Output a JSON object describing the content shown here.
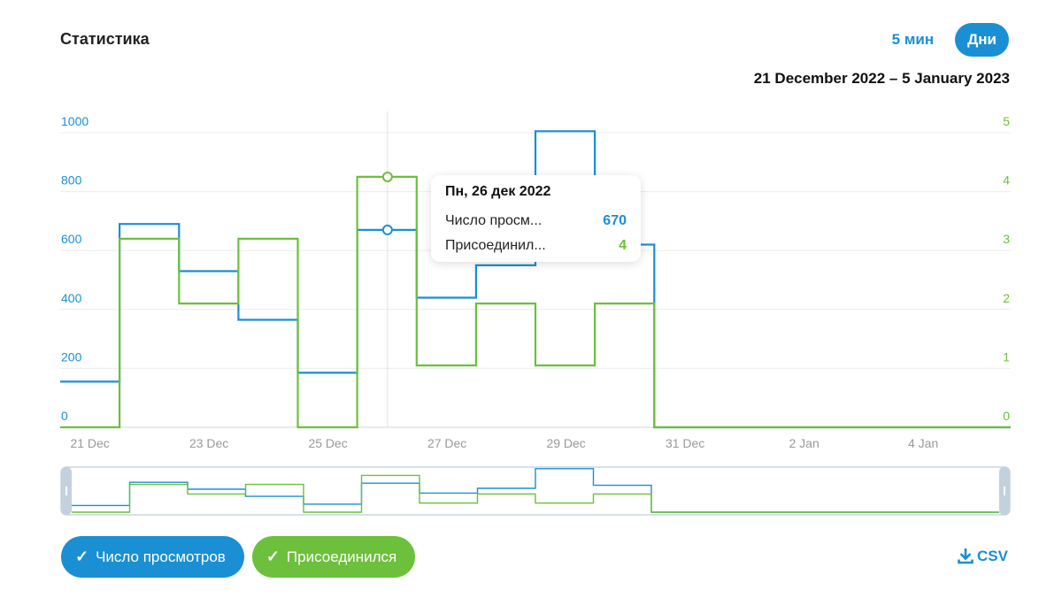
{
  "header": {
    "title": "Статистика",
    "period_5min": "5 мин",
    "period_days": "Дни",
    "date_range": "21 December 2022 – 5 January 2023"
  },
  "colors": {
    "views": "#1b8fd3",
    "joined": "#6cc03b"
  },
  "chart_data": {
    "type": "line",
    "step": true,
    "x_dates": [
      "21 Dec",
      "22 Dec",
      "23 Dec",
      "24 Dec",
      "25 Dec",
      "26 Dec",
      "27 Dec",
      "28 Dec",
      "29 Dec",
      "30 Dec",
      "31 Dec",
      "1 Jan",
      "2 Jan",
      "3 Jan",
      "4 Jan",
      "5 Jan"
    ],
    "x_tick_labels": [
      "21 Dec",
      "23 Dec",
      "25 Dec",
      "27 Dec",
      "29 Dec",
      "31 Dec",
      "2 Jan",
      "4 Jan"
    ],
    "y_left_ticks": [
      "0",
      "200",
      "400",
      "600",
      "800",
      "1000"
    ],
    "y_left_range": [
      0,
      1000
    ],
    "y_right_ticks": [
      "0",
      "1",
      "2",
      "3",
      "4",
      "5"
    ],
    "y_right_range": [
      0,
      5
    ],
    "grid": true,
    "series": [
      {
        "name": "Число просмотров",
        "axis": "left",
        "values": [
          155,
          690,
          530,
          365,
          185,
          670,
          440,
          550,
          1005,
          620,
          0,
          0,
          0,
          0,
          0,
          0
        ]
      },
      {
        "name": "Присоединился",
        "axis": "right",
        "values": [
          0,
          3.2,
          2.1,
          3.2,
          0,
          4.25,
          1.05,
          2.1,
          1.05,
          2.1,
          0,
          0,
          0,
          0,
          0,
          0
        ]
      }
    ],
    "hover_index": 5,
    "tooltip": {
      "title": "Пн, 26 дек 2022",
      "rows": [
        {
          "label": "Число просм...",
          "value": "670"
        },
        {
          "label": "Присоединил...",
          "value": "4"
        }
      ]
    }
  },
  "legend": {
    "views_label": "Число просмотров",
    "joined_label": "Присоединился"
  },
  "csv_label": "CSV"
}
